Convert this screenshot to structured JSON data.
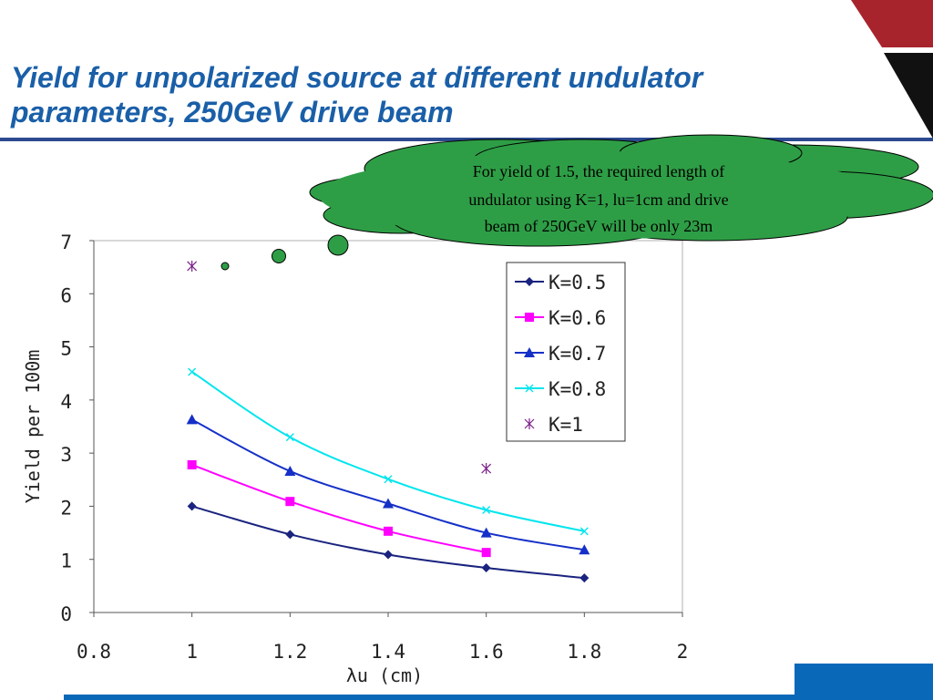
{
  "slide": {
    "title_line1": "Yield for unpolarized source at different undulator",
    "title_line2": "parameters, 250GeV drive beam",
    "callout_lines": [
      "For yield of 1.5, the required length of",
      "undulator using K=1, lu=1cm and drive",
      "beam of 250GeV will be only 23m"
    ]
  },
  "colors": {
    "title": "#1a5fa8",
    "rule": "#2b4a8f",
    "corner_red": "#a8242d",
    "corner_black": "#111111",
    "corner_blue": "#0a68b8",
    "callout_fill": "#2e9e46",
    "callout_stroke": "#000000"
  },
  "chart_data": {
    "type": "line",
    "title": "",
    "xlabel": "λu (cm)",
    "ylabel": "Yield per 100m",
    "xlim": [
      0.8,
      2.0
    ],
    "ylim": [
      0,
      7
    ],
    "xticks": [
      0.8,
      1.0,
      1.2,
      1.4,
      1.6,
      1.8,
      2.0
    ],
    "xtick_labels": [
      "0.8",
      "1",
      "1.2",
      "1.4",
      "1.6",
      "1.8",
      "2"
    ],
    "yticks": [
      0,
      1,
      2,
      3,
      4,
      5,
      6,
      7
    ],
    "ytick_labels": [
      "0",
      "1",
      "2",
      "3",
      "4",
      "5",
      "6",
      "7"
    ],
    "grid": false,
    "legend_position": "top-right",
    "series": [
      {
        "name": "K=0.5",
        "color": "#1a237e",
        "marker": "diamond",
        "x": [
          1.0,
          1.2,
          1.4,
          1.6,
          1.8
        ],
        "y": [
          2.0,
          1.47,
          1.09,
          0.84,
          0.65
        ]
      },
      {
        "name": "K=0.6",
        "color": "#ff00ff",
        "marker": "square",
        "x": [
          1.0,
          1.2,
          1.4,
          1.6
        ],
        "y": [
          2.78,
          2.09,
          1.53,
          1.13
        ]
      },
      {
        "name": "K=0.7",
        "color": "#1530c8",
        "marker": "triangle",
        "x": [
          1.0,
          1.2,
          1.4,
          1.6,
          1.8
        ],
        "y": [
          3.63,
          2.66,
          2.05,
          1.5,
          1.18
        ]
      },
      {
        "name": "K=0.8",
        "color": "#00e5ee",
        "marker": "x",
        "x": [
          1.0,
          1.2,
          1.4,
          1.6,
          1.8
        ],
        "y": [
          4.53,
          3.3,
          2.51,
          1.93,
          1.53
        ]
      },
      {
        "name": "K=1",
        "color": "#7b1f8a",
        "marker": "asterisk",
        "line": false,
        "x": [
          1.0,
          1.6
        ],
        "y": [
          6.52,
          2.71
        ]
      }
    ]
  }
}
